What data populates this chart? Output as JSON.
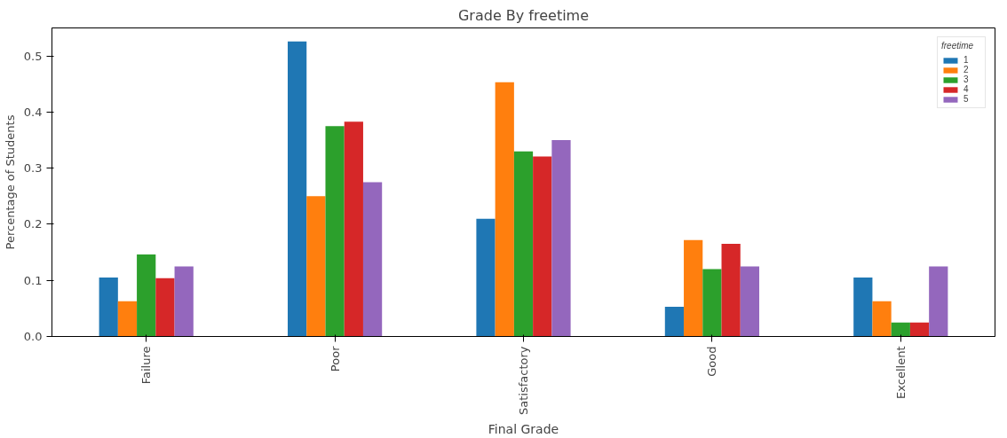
{
  "chart_data": {
    "type": "bar",
    "title": "Grade By freetime",
    "xlabel": "Final Grade",
    "ylabel": "Percentage of Students",
    "legend_title": "freetime",
    "categories": [
      "Failure",
      "Poor",
      "Satisfactory",
      "Good",
      "Excellent"
    ],
    "series": [
      {
        "name": "1",
        "color": "#1f77b4",
        "values": [
          0.105,
          0.526,
          0.21,
          0.053,
          0.105
        ]
      },
      {
        "name": "2",
        "color": "#ff7f0e",
        "values": [
          0.063,
          0.25,
          0.453,
          0.172,
          0.063
        ]
      },
      {
        "name": "3",
        "color": "#2ca02c",
        "values": [
          0.146,
          0.375,
          0.33,
          0.12,
          0.025
        ]
      },
      {
        "name": "4",
        "color": "#d62728",
        "values": [
          0.104,
          0.383,
          0.321,
          0.165,
          0.025
        ]
      },
      {
        "name": "5",
        "color": "#9467bd",
        "values": [
          0.125,
          0.275,
          0.35,
          0.125,
          0.125
        ]
      }
    ],
    "ylim": [
      0,
      0.55
    ],
    "yticks": [
      {
        "value": 0,
        "label": "0.0"
      },
      0.1,
      0.2,
      0.3,
      0.4,
      0.5
    ],
    "legend": "top right",
    "grid": false
  }
}
